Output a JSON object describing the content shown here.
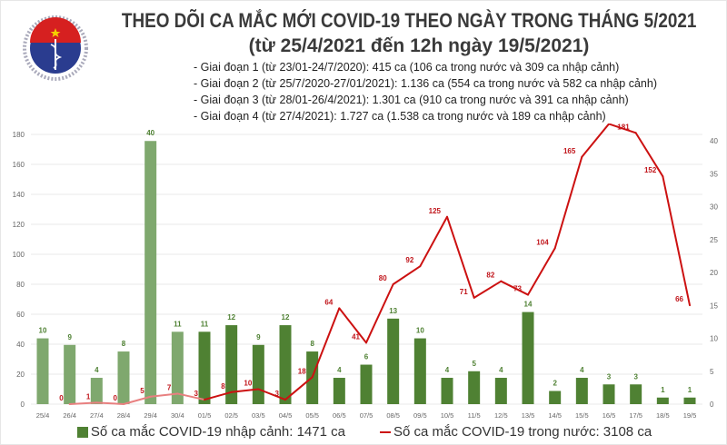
{
  "header": {
    "logo_text": "BỘ Y TẾ · MINISTRY OF HEALTH",
    "title": "THEO DÕI CA MẮC MỚI COVID-19 THEO NGÀY TRONG THÁNG 5/2021",
    "subtitle": "(từ 25/4/2021 đến 12h ngày 19/5/2021)",
    "phases": [
      "- Giai đoạn 1 (từ 23/01-24/7/2020): 415 ca (106 ca trong nước và 309 ca nhập cảnh)",
      "- Giai đoạn 2 (từ 25/7/2020-27/01/2021): 1.136 ca (554 ca trong nước và 582 ca nhập cảnh)",
      "- Giai đoạn 3 (từ 28/01-26/4/2021): 1.301 ca (910 ca trong nước và 391 ca nhập cảnh)",
      "- Giai đoạn 4 (từ 27/4/2021): 1.727 ca (1.538 ca trong nước và 189 ca nhập cảnh)"
    ]
  },
  "chart_data": {
    "type": "bar+line",
    "categories": [
      "25/4",
      "26/4",
      "27/4",
      "28/4",
      "29/4",
      "30/4",
      "01/5",
      "02/5",
      "03/5",
      "04/5",
      "05/5",
      "06/5",
      "07/5",
      "08/5",
      "09/5",
      "10/5",
      "11/5",
      "12/5",
      "13/5",
      "14/5",
      "15/5",
      "16/5",
      "17/5",
      "18/5",
      "19/5"
    ],
    "series": [
      {
        "name": "Số ca mắc COVID-19 nhập cảnh: 1471 ca",
        "type": "bar",
        "axis": "right",
        "values": [
          10,
          9,
          4,
          8,
          40,
          11,
          11,
          12,
          9,
          12,
          8,
          4,
          6,
          13,
          10,
          4,
          5,
          4,
          14,
          2,
          4,
          3,
          3,
          1,
          1
        ],
        "color": "#4f8133",
        "color_faded": "#7fa86e"
      },
      {
        "name": "Số ca mắc COVID-19 trong nước: 3108 ca",
        "type": "line",
        "axis": "left",
        "values": [
          null,
          0,
          1,
          0,
          5,
          7,
          3,
          8,
          10,
          3,
          18,
          64,
          41,
          80,
          92,
          125,
          71,
          82,
          73,
          104,
          165,
          187,
          181,
          152,
          66
        ],
        "color": "#cc1111",
        "color_faded": "#e88080"
      }
    ],
    "faded_until": "30/4",
    "left_axis": {
      "ylim": [
        0,
        180
      ],
      "ticks": [
        0,
        20,
        40,
        60,
        80,
        100,
        120,
        140,
        160,
        180
      ]
    },
    "right_axis": {
      "ylim": [
        0,
        41
      ],
      "ticks": [
        0,
        5,
        10,
        15,
        20,
        25,
        30,
        35,
        40
      ]
    },
    "grid": true,
    "legend": "bottom"
  }
}
